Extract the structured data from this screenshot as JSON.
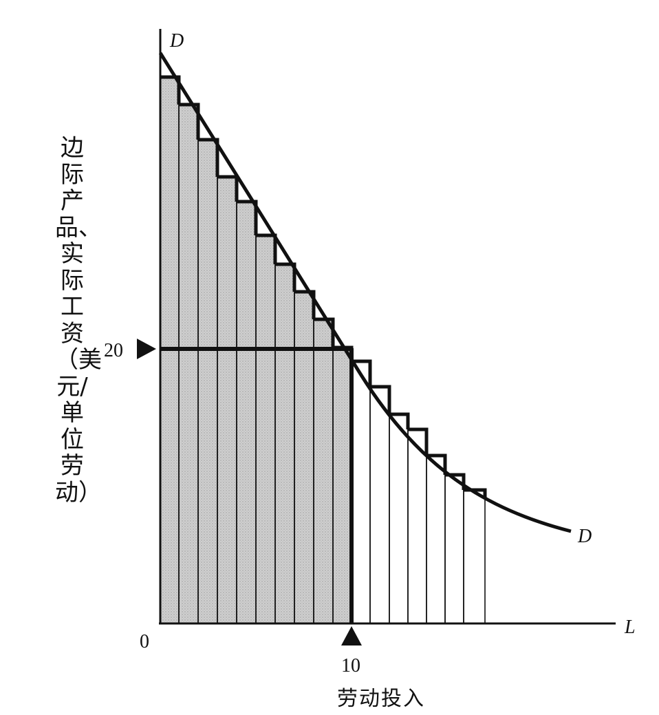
{
  "y_axis_label": "边际产品、实际工资（美元/单位劳动）",
  "x_axis_label": "劳动投入",
  "x_axis_symbol": "L",
  "curve_label_top": "D",
  "curve_label_bottom": "D",
  "origin_label": "0",
  "wage_tick_label": "20",
  "labor_tick_label": "10",
  "colors": {
    "ink": "#111111",
    "shade": "#c8c8c8"
  },
  "chart_data": {
    "type": "area",
    "description_units": "x = units of labor, y = dollars per unit of labor",
    "marked_wage": 20,
    "marked_labor": 10,
    "shaded_units": 10,
    "total_unit_bars": 17
  }
}
